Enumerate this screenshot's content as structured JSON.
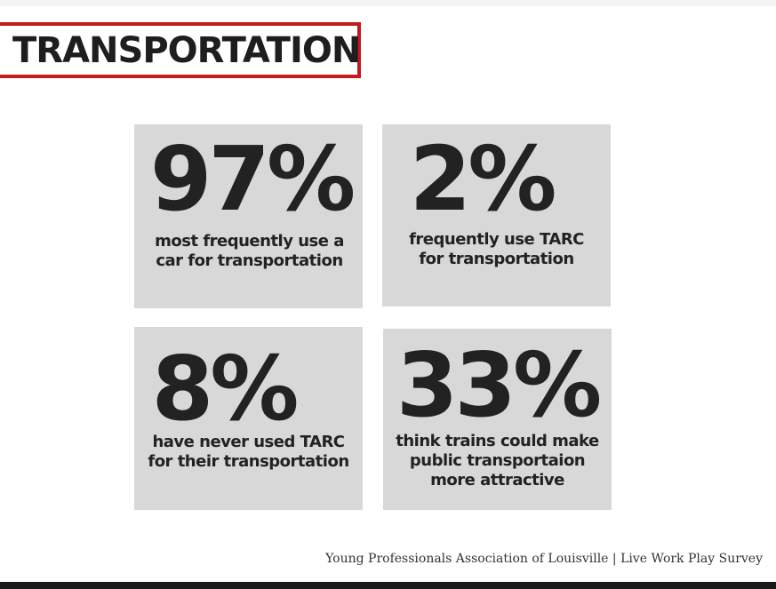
{
  "title": "TRANSPORTATION",
  "colors": {
    "title_border": "#c41a1f",
    "card_background": "#d8d8d8",
    "text": "#222222",
    "bottom_bar": "#1a1a1a"
  },
  "stats": [
    {
      "value": "97%",
      "label_lines": [
        "most frequently use a",
        "car for transportation"
      ]
    },
    {
      "value": "2%",
      "label_lines": [
        "frequently use TARC",
        "for transportation"
      ]
    },
    {
      "value": "8%",
      "label_lines": [
        "have never used TARC",
        "for their transportation"
      ]
    },
    {
      "value": "33%",
      "label_lines": [
        "think trains could make",
        "public transportaion",
        "more attractive"
      ]
    }
  ],
  "footer": {
    "source": "Young Professionals Association of Louisville |  Live Work Play Survey"
  }
}
